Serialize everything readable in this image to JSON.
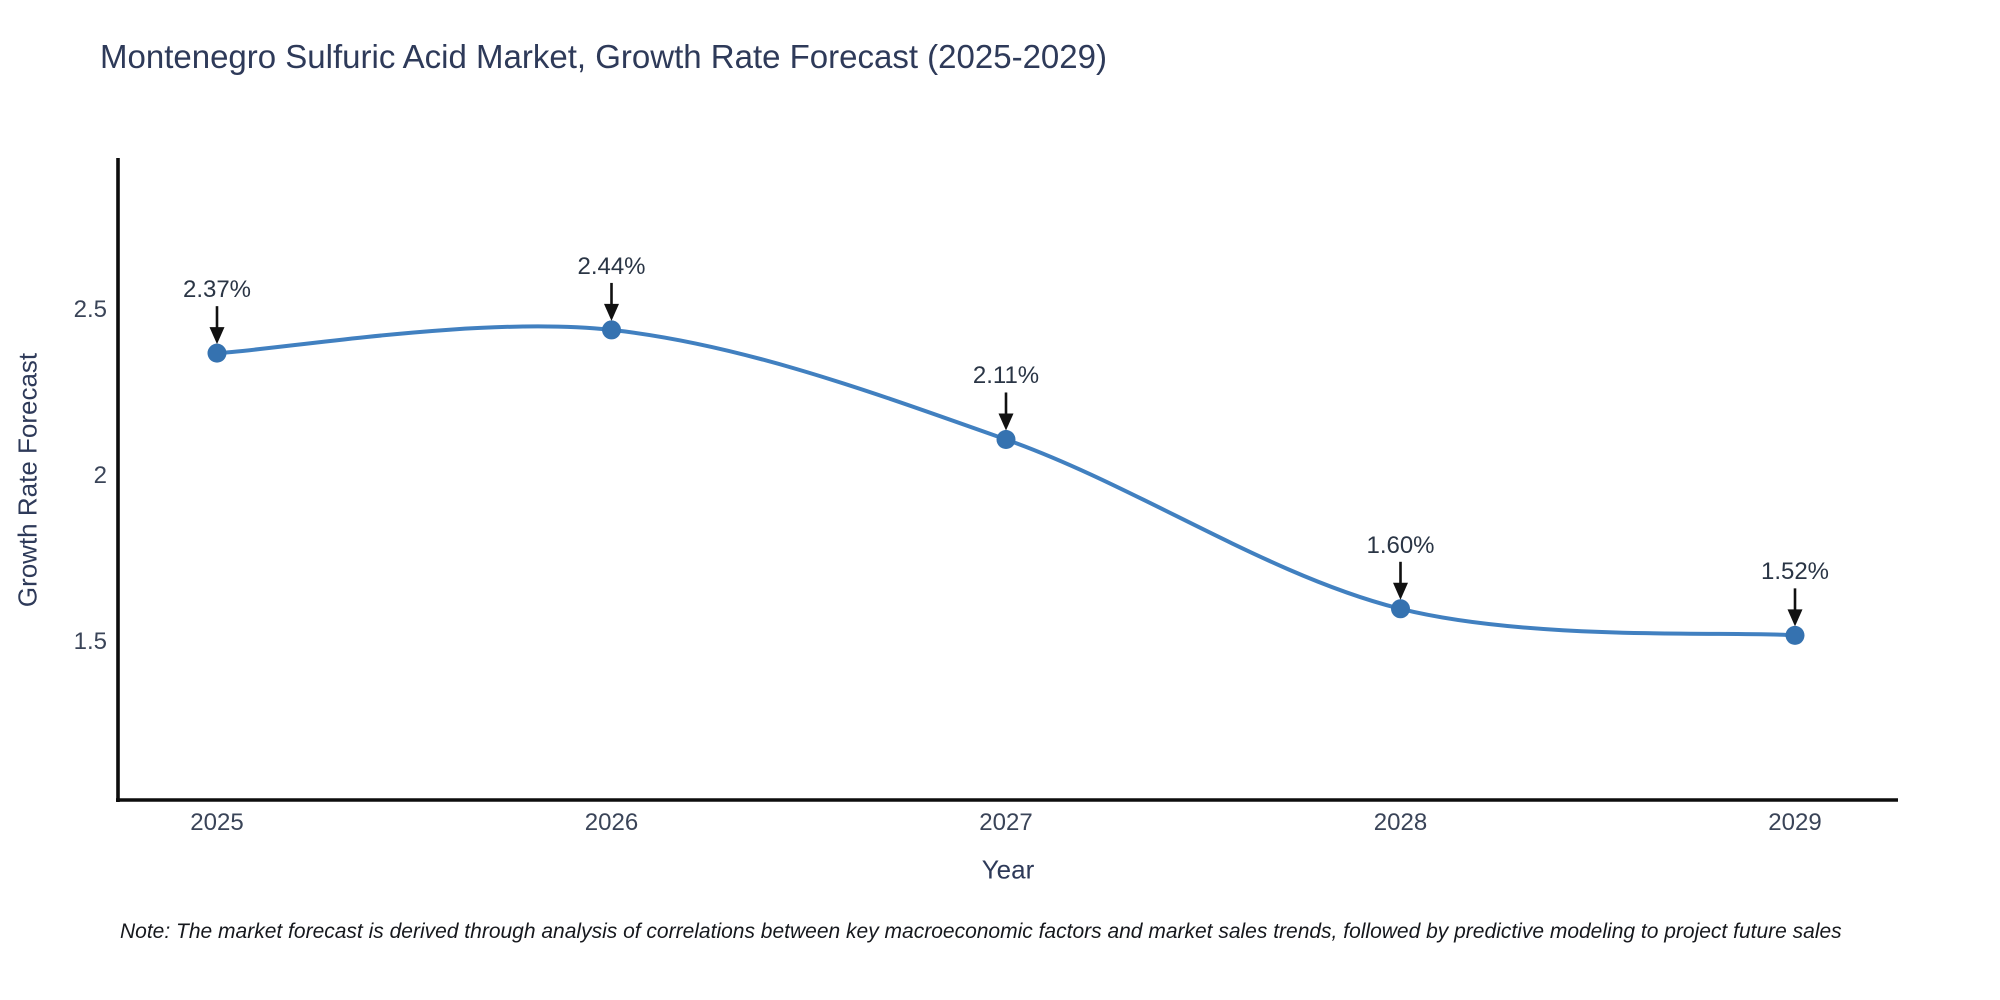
{
  "chart_data": {
    "type": "line",
    "title": "Montenegro Sulfuric Acid Market, Growth Rate Forecast (2025-2029)",
    "xlabel": "Year",
    "ylabel": "Growth Rate Forecast",
    "x": [
      2025,
      2026,
      2027,
      2028,
      2029
    ],
    "series": [
      {
        "name": "Growth Rate Forecast",
        "values": [
          2.37,
          2.44,
          2.11,
          1.6,
          1.52
        ]
      }
    ],
    "point_labels": [
      "2.37%",
      "2.44%",
      "2.11%",
      "1.60%",
      "1.52%"
    ],
    "x_tick_labels": [
      "2025",
      "2026",
      "2027",
      "2028",
      "2029"
    ],
    "y_ticks": [
      1.5,
      2.0,
      2.5
    ],
    "y_tick_labels": [
      "1.5",
      "2",
      "2.5"
    ],
    "xlim": [
      2024.75,
      2029.26
    ],
    "ylim": [
      1.02,
      2.95
    ],
    "line_shape": "spline",
    "grid": false,
    "legend_position": "none",
    "colors": {
      "line": "#4180c0",
      "marker": "#3572b0",
      "axis": "#0d0d0d",
      "arrow": "#111111",
      "title_text": "#2e3a59",
      "tick_text": "#3a4458",
      "annotation_text": "#2a3545"
    }
  },
  "note": {
    "text": "Note: The market forecast is derived through analysis of correlations between key macroeconomic factors and market sales trends, followed by predictive modeling to project future sales"
  }
}
